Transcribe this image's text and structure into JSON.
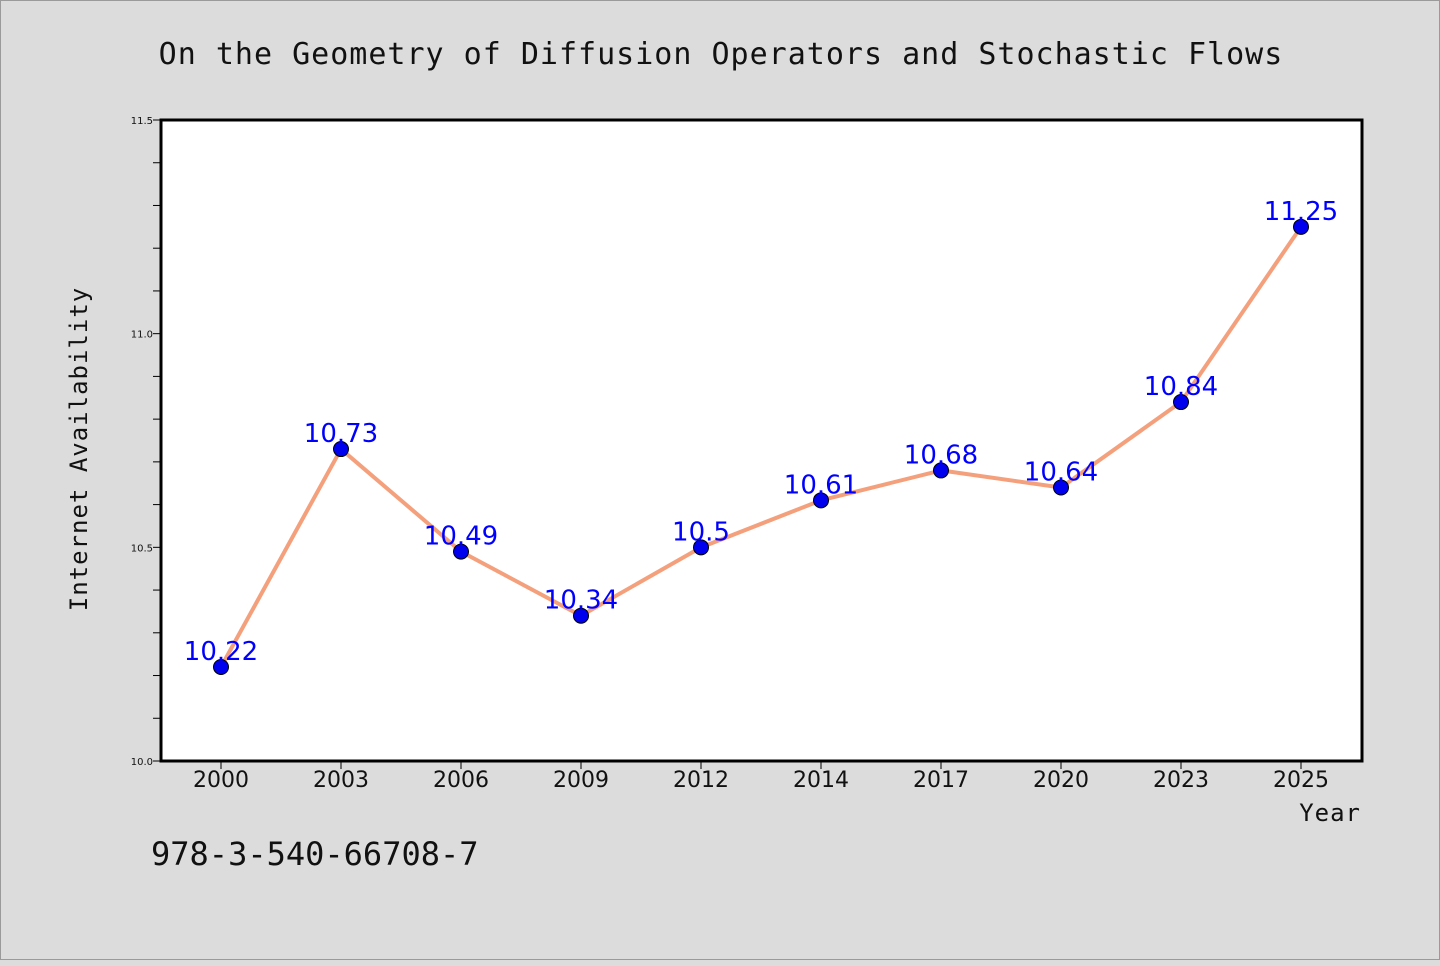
{
  "chart_data": {
    "type": "line",
    "title": "On the Geometry of Diffusion Operators and Stochastic Flows",
    "xlabel": "Year",
    "ylabel": "Internet Availability",
    "categories": [
      "2000",
      "2003",
      "2006",
      "2009",
      "2012",
      "2014",
      "2017",
      "2020",
      "2023",
      "2025"
    ],
    "series": [
      {
        "values": [
          10.22,
          10.73,
          10.49,
          10.34,
          10.5,
          10.61,
          10.68,
          10.64,
          10.84,
          11.25
        ],
        "labels": [
          "10.22",
          "10.73",
          "10.49",
          "10.34",
          "10.5",
          "10.61",
          "10.68",
          "10.64",
          "10.84",
          "11.25"
        ],
        "line_color": "#f4a07c",
        "marker_color": "#0000ee"
      }
    ],
    "ylim": [
      10.0,
      11.5
    ],
    "yticks": [
      "10.0",
      "10.5",
      "11.0",
      "11.5"
    ],
    "grid": false,
    "legend": "none"
  },
  "footer": {
    "isbn": "978-3-540-66708-7"
  }
}
